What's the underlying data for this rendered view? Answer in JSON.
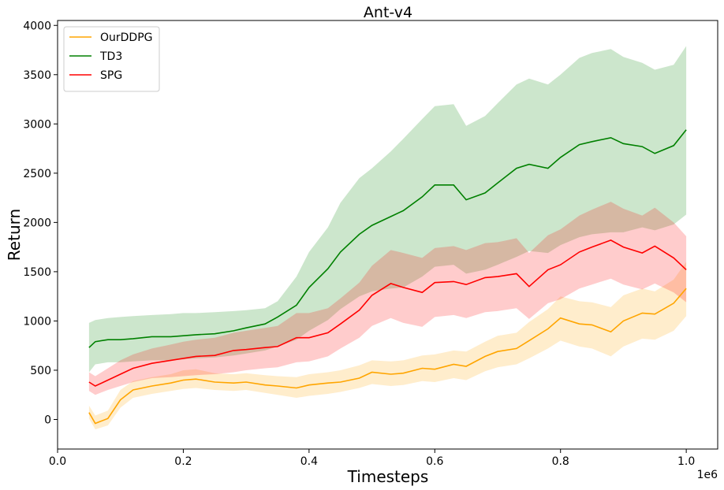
{
  "chart_data": {
    "type": "line",
    "title": "Ant-v4",
    "xlabel": "Timesteps",
    "ylabel": "Return",
    "x_offset_label": "1e6",
    "xlim": [
      0.0,
      1.05
    ],
    "ylim": [
      -300,
      4050
    ],
    "xticks": [
      {
        "value": 0.0,
        "label": "0.0"
      },
      {
        "value": 0.2,
        "label": "0.2"
      },
      {
        "value": 0.4,
        "label": "0.4"
      },
      {
        "value": 0.6,
        "label": "0.6"
      },
      {
        "value": 0.8,
        "label": "0.8"
      },
      {
        "value": 1.0,
        "label": "1.0"
      }
    ],
    "yticks": [
      {
        "value": 0,
        "label": "0"
      },
      {
        "value": 500,
        "label": "500"
      },
      {
        "value": 1000,
        "label": "1000"
      },
      {
        "value": 1500,
        "label": "1500"
      },
      {
        "value": 2000,
        "label": "2000"
      },
      {
        "value": 2500,
        "label": "2500"
      },
      {
        "value": 3000,
        "label": "3000"
      },
      {
        "value": 3500,
        "label": "3500"
      },
      {
        "value": 4000,
        "label": "4000"
      }
    ],
    "grid": false,
    "legend_position": "top-left",
    "series": [
      {
        "name": "OurDDPG",
        "color": "#ffa500",
        "band_color": "#ffa500",
        "x": [
          0.05,
          0.06,
          0.08,
          0.1,
          0.12,
          0.15,
          0.18,
          0.2,
          0.22,
          0.25,
          0.28,
          0.3,
          0.33,
          0.35,
          0.38,
          0.4,
          0.43,
          0.45,
          0.48,
          0.5,
          0.53,
          0.55,
          0.58,
          0.6,
          0.63,
          0.65,
          0.68,
          0.7,
          0.73,
          0.75,
          0.78,
          0.8,
          0.83,
          0.85,
          0.88,
          0.9,
          0.93,
          0.95,
          0.98,
          1.0
        ],
        "y": [
          70,
          -40,
          10,
          200,
          300,
          340,
          370,
          400,
          410,
          380,
          370,
          380,
          350,
          340,
          320,
          350,
          370,
          380,
          420,
          480,
          460,
          470,
          520,
          510,
          560,
          540,
          640,
          690,
          720,
          800,
          920,
          1030,
          970,
          960,
          890,
          1000,
          1080,
          1070,
          1180,
          1330
        ],
        "lower": [
          10,
          -100,
          -60,
          120,
          220,
          260,
          290,
          310,
          320,
          300,
          290,
          300,
          270,
          250,
          220,
          240,
          260,
          280,
          320,
          360,
          340,
          350,
          390,
          380,
          420,
          400,
          490,
          530,
          560,
          620,
          720,
          800,
          740,
          720,
          640,
          740,
          820,
          810,
          900,
          1050
        ],
        "upper": [
          140,
          40,
          90,
          300,
          390,
          430,
          460,
          500,
          510,
          470,
          460,
          470,
          450,
          440,
          430,
          460,
          480,
          500,
          550,
          600,
          590,
          600,
          650,
          660,
          700,
          690,
          790,
          850,
          880,
          990,
          1120,
          1250,
          1200,
          1190,
          1140,
          1260,
          1330,
          1300,
          1420,
          1600
        ]
      },
      {
        "name": "TD3",
        "color": "#008000",
        "band_color": "#008000",
        "x": [
          0.05,
          0.06,
          0.08,
          0.1,
          0.12,
          0.15,
          0.18,
          0.2,
          0.22,
          0.25,
          0.28,
          0.3,
          0.33,
          0.35,
          0.38,
          0.4,
          0.43,
          0.45,
          0.48,
          0.5,
          0.53,
          0.55,
          0.58,
          0.6,
          0.63,
          0.65,
          0.68,
          0.7,
          0.73,
          0.75,
          0.78,
          0.8,
          0.83,
          0.85,
          0.88,
          0.9,
          0.93,
          0.95,
          0.98,
          1.0
        ],
        "y": [
          730,
          790,
          810,
          810,
          820,
          840,
          840,
          850,
          860,
          870,
          900,
          930,
          970,
          1040,
          1160,
          1340,
          1530,
          1700,
          1880,
          1970,
          2060,
          2120,
          2260,
          2380,
          2380,
          2230,
          2300,
          2400,
          2550,
          2590,
          2550,
          2660,
          2790,
          2820,
          2860,
          2800,
          2770,
          2700,
          2780,
          2940
        ],
        "lower": [
          480,
          560,
          580,
          580,
          590,
          600,
          600,
          610,
          620,
          630,
          650,
          670,
          700,
          740,
          810,
          900,
          1010,
          1120,
          1250,
          1300,
          1330,
          1340,
          1450,
          1550,
          1570,
          1480,
          1520,
          1570,
          1650,
          1710,
          1690,
          1770,
          1850,
          1880,
          1900,
          1900,
          1950,
          1920,
          1980,
          2080
        ],
        "upper": [
          980,
          1010,
          1030,
          1040,
          1050,
          1060,
          1070,
          1080,
          1080,
          1090,
          1100,
          1110,
          1130,
          1200,
          1450,
          1700,
          1950,
          2200,
          2450,
          2550,
          2720,
          2850,
          3050,
          3180,
          3200,
          2980,
          3080,
          3210,
          3400,
          3460,
          3400,
          3500,
          3670,
          3720,
          3760,
          3680,
          3620,
          3550,
          3600,
          3790
        ]
      },
      {
        "name": "SPG",
        "color": "#ff0000",
        "band_color": "#ff0000",
        "x": [
          0.05,
          0.06,
          0.08,
          0.1,
          0.12,
          0.15,
          0.18,
          0.2,
          0.22,
          0.25,
          0.28,
          0.3,
          0.33,
          0.35,
          0.38,
          0.4,
          0.43,
          0.45,
          0.48,
          0.5,
          0.53,
          0.55,
          0.58,
          0.6,
          0.63,
          0.65,
          0.68,
          0.7,
          0.73,
          0.75,
          0.78,
          0.8,
          0.83,
          0.85,
          0.88,
          0.9,
          0.93,
          0.95,
          0.98,
          1.0
        ],
        "y": [
          380,
          340,
          400,
          460,
          520,
          570,
          600,
          620,
          640,
          650,
          700,
          710,
          730,
          740,
          830,
          830,
          880,
          970,
          1110,
          1260,
          1380,
          1340,
          1290,
          1390,
          1400,
          1370,
          1440,
          1450,
          1480,
          1350,
          1520,
          1570,
          1700,
          1750,
          1820,
          1750,
          1690,
          1760,
          1640,
          1520
        ],
        "lower": [
          290,
          250,
          300,
          340,
          380,
          420,
          430,
          440,
          450,
          460,
          480,
          500,
          520,
          530,
          580,
          590,
          640,
          720,
          830,
          950,
          1030,
          980,
          940,
          1040,
          1060,
          1030,
          1090,
          1100,
          1130,
          1020,
          1180,
          1220,
          1330,
          1370,
          1430,
          1370,
          1320,
          1380,
          1290,
          1190
        ],
        "upper": [
          480,
          440,
          520,
          600,
          660,
          720,
          760,
          790,
          810,
          830,
          880,
          900,
          930,
          950,
          1080,
          1080,
          1130,
          1230,
          1390,
          1560,
          1720,
          1690,
          1640,
          1740,
          1760,
          1720,
          1790,
          1800,
          1840,
          1690,
          1870,
          1930,
          2070,
          2130,
          2210,
          2140,
          2070,
          2150,
          2000,
          1860
        ]
      }
    ]
  }
}
